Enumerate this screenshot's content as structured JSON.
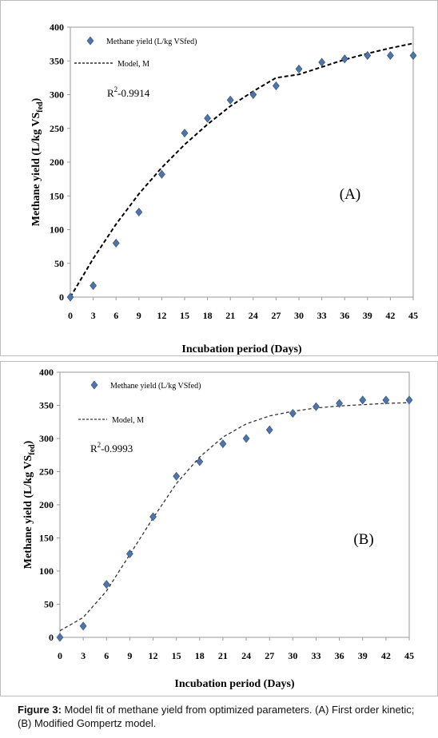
{
  "caption": {
    "label": "Figure 3:",
    "text": " Model fit of methane yield from optimized parameters. (A) First order kinetic; (B) Modified Gompertz model."
  },
  "chart_data": [
    {
      "type": "scatter",
      "panel_label": "(A)",
      "xlabel": "Incubation period (Days)",
      "ylabel": "Methane yield (L/kg VS",
      "ylabel_sub": "fed",
      "ylabel_close": ")",
      "xlim": [
        0,
        45
      ],
      "ylim": [
        0,
        400
      ],
      "xticks": [
        0,
        3,
        6,
        9,
        12,
        15,
        18,
        21,
        24,
        27,
        30,
        33,
        36,
        39,
        42,
        45
      ],
      "yticks": [
        0,
        50,
        100,
        150,
        200,
        250,
        300,
        350,
        400
      ],
      "grid": false,
      "legend_position": "top-left",
      "annotation": {
        "base": "R",
        "sup": "2",
        "rest": "-0.9914"
      },
      "series": [
        {
          "name": "Methane yield (L/kg VSfed)",
          "marker": "diamond",
          "color": "#4f75a8",
          "x": [
            0,
            3,
            6,
            9,
            12,
            15,
            18,
            21,
            24,
            27,
            30,
            33,
            36,
            39,
            42,
            45
          ],
          "y": [
            0,
            17,
            80,
            126,
            182,
            243,
            265,
            292,
            300,
            313,
            338,
            348,
            353,
            358,
            358,
            358
          ]
        },
        {
          "name": "Model, M",
          "style": "dashed-line",
          "color": "#000000",
          "x": [
            0,
            3,
            6,
            9,
            12,
            15,
            18,
            21,
            24,
            27,
            30,
            33,
            36,
            39,
            42,
            45
          ],
          "y": [
            0,
            57,
            108,
            153,
            192,
            226,
            256,
            283,
            305,
            325,
            330,
            341,
            352,
            361,
            369,
            376
          ]
        }
      ]
    },
    {
      "type": "scatter",
      "panel_label": "(B)",
      "xlabel": "Incubation period (Days)",
      "ylabel": "Methane yield (L/kg VS",
      "ylabel_sub": "fed",
      "ylabel_close": ")",
      "xlim": [
        0,
        45
      ],
      "ylim": [
        0,
        400
      ],
      "xticks": [
        0,
        3,
        6,
        9,
        12,
        15,
        18,
        21,
        24,
        27,
        30,
        33,
        36,
        39,
        42,
        45
      ],
      "yticks": [
        0,
        50,
        100,
        150,
        200,
        250,
        300,
        350,
        400
      ],
      "grid": false,
      "legend_position": "top-left",
      "annotation": {
        "base": "R",
        "sup": "2",
        "rest": "-0.9993"
      },
      "series": [
        {
          "name": "Methane yield (L/kg VSfed)",
          "marker": "diamond",
          "color": "#4f75a8",
          "x": [
            0,
            3,
            6,
            9,
            12,
            15,
            18,
            21,
            24,
            27,
            30,
            33,
            36,
            39,
            42,
            45
          ],
          "y": [
            0,
            17,
            80,
            126,
            182,
            243,
            265,
            292,
            300,
            313,
            338,
            348,
            353,
            358,
            358,
            358
          ]
        },
        {
          "name": "Model, M",
          "style": "dashed-line",
          "color": "#333333",
          "x": [
            0,
            3,
            6,
            9,
            12,
            15,
            18,
            21,
            24,
            27,
            30,
            33,
            36,
            39,
            42,
            45
          ],
          "y": [
            10,
            30,
            70,
            125,
            180,
            232,
            272,
            302,
            322,
            334,
            341,
            346,
            349,
            351,
            353,
            354
          ]
        }
      ]
    }
  ]
}
